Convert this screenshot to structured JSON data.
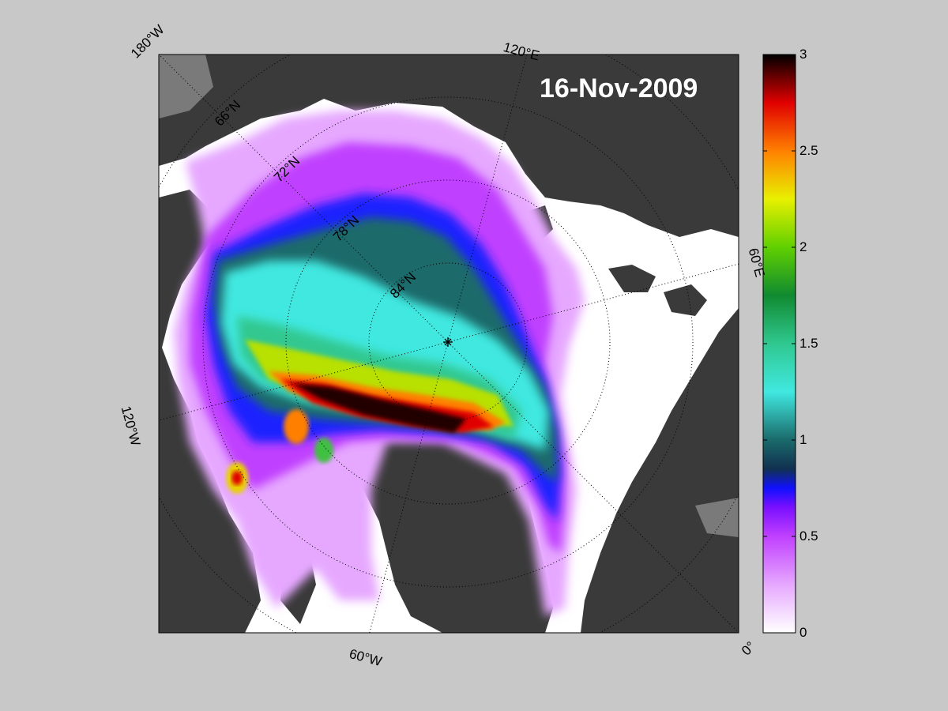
{
  "map": {
    "date": "16-Nov-2009",
    "colors": {
      "background": "#c8c8c8",
      "ocean_open": "#ffffff",
      "land": "#3a3a3a",
      "ice_shelf": "#7a7a7a"
    },
    "graticule": {
      "longitude_labels": [
        "180°W",
        "120°E",
        "60°E",
        "0°",
        "60°W",
        "120°W"
      ],
      "latitude_labels": [
        "66°N",
        "72°N",
        "78°N",
        "84°N"
      ]
    },
    "north_pole_marker": "*"
  },
  "colorbar": {
    "min": 0,
    "max": 3,
    "tick_labels": [
      "3",
      "2.5",
      "2",
      "1.5",
      "1",
      "0.5",
      "0"
    ],
    "stops": [
      {
        "value": 0.0,
        "color": "#ffffff"
      },
      {
        "value": 0.25,
        "color": "#e6a8ff"
      },
      {
        "value": 0.5,
        "color": "#c040ff"
      },
      {
        "value": 0.65,
        "color": "#7a10ff"
      },
      {
        "value": 0.75,
        "color": "#1010ff"
      },
      {
        "value": 0.85,
        "color": "#103050"
      },
      {
        "value": 1.0,
        "color": "#1a6a6a"
      },
      {
        "value": 1.25,
        "color": "#40e8e0"
      },
      {
        "value": 1.5,
        "color": "#30c890"
      },
      {
        "value": 1.75,
        "color": "#108a30"
      },
      {
        "value": 2.0,
        "color": "#60d000"
      },
      {
        "value": 2.25,
        "color": "#e8f000"
      },
      {
        "value": 2.5,
        "color": "#ff8000"
      },
      {
        "value": 2.75,
        "color": "#e00000"
      },
      {
        "value": 3.0,
        "color": "#000000"
      }
    ]
  }
}
